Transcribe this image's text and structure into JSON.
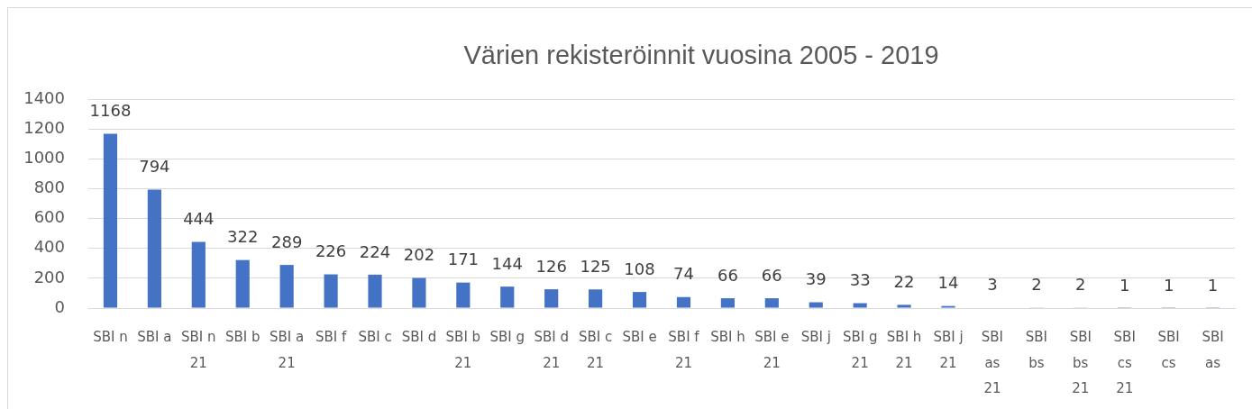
{
  "chart_data": {
    "type": "bar",
    "title": "Värien rekisteröinnit vuosina 2005 - 2019",
    "categories": [
      "SBI n",
      "SBI a",
      "SBI n 21",
      "SBI b",
      "SBI a 21",
      "SBI f",
      "SBI c",
      "SBI d",
      "SBI b 21",
      "SBI g",
      "SBI d 21",
      "SBI c 21",
      "SBI e",
      "SBI f 21",
      "SBI h",
      "SBI e 21",
      "SBI j",
      "SBI g 21",
      "SBI h 21",
      "SBI j 21",
      "SBI as 21",
      "SBI bs",
      "SBI bs 21",
      "SBI cs 21",
      "SBI cs",
      "SBI as"
    ],
    "values": [
      1168,
      794,
      444,
      322,
      289,
      226,
      224,
      202,
      171,
      144,
      126,
      125,
      108,
      74,
      66,
      66,
      39,
      33,
      22,
      14,
      3,
      2,
      2,
      1,
      1,
      1
    ],
    "color": "#4472c4",
    "ylim": [
      0,
      1400
    ],
    "yticks": [
      0,
      200,
      400,
      600,
      800,
      1000,
      1200,
      1400
    ],
    "grid": "y",
    "data_labels": true
  }
}
